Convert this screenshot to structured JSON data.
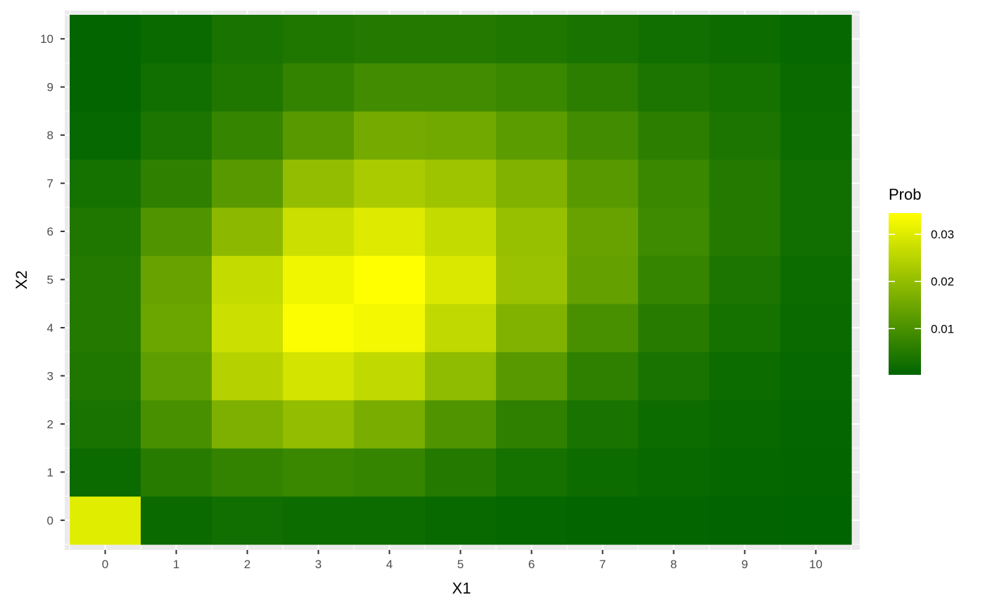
{
  "chart_data": {
    "type": "heatmap",
    "xlabel": "X1",
    "ylabel": "X2",
    "x": [
      0,
      1,
      2,
      3,
      4,
      5,
      6,
      7,
      8,
      9,
      10
    ],
    "y": [
      0,
      1,
      2,
      3,
      4,
      5,
      6,
      7,
      8,
      9,
      10
    ],
    "x_tick_labels": [
      "0",
      "1",
      "2",
      "3",
      "4",
      "5",
      "6",
      "7",
      "8",
      "9",
      "10"
    ],
    "y_tick_labels": [
      "0",
      "1",
      "2",
      "3",
      "4",
      "5",
      "6",
      "7",
      "8",
      "9",
      "10"
    ],
    "values": [
      [
        0.0305,
        0.0015,
        0.0025,
        0.002,
        0.002,
        0.0012,
        0.0008,
        0.0005,
        0.0005,
        0.0003,
        0.0002
      ],
      [
        0.0018,
        0.0055,
        0.007,
        0.008,
        0.0075,
        0.005,
        0.003,
        0.002,
        0.0012,
        0.0008,
        0.0005
      ],
      [
        0.0035,
        0.01,
        0.017,
        0.02,
        0.0165,
        0.011,
        0.0065,
        0.0035,
        0.002,
        0.0012,
        0.0006
      ],
      [
        0.0045,
        0.013,
        0.0245,
        0.0285,
        0.026,
        0.0195,
        0.012,
        0.0065,
        0.0035,
        0.002,
        0.001
      ],
      [
        0.005,
        0.0145,
        0.0275,
        0.034,
        0.033,
        0.026,
        0.0175,
        0.01,
        0.0055,
        0.003,
        0.0015
      ],
      [
        0.005,
        0.014,
        0.0265,
        0.0325,
        0.0345,
        0.0295,
        0.021,
        0.0135,
        0.0075,
        0.004,
        0.002
      ],
      [
        0.0045,
        0.011,
        0.019,
        0.0275,
        0.03,
        0.0265,
        0.0205,
        0.014,
        0.0085,
        0.005,
        0.0025
      ],
      [
        0.003,
        0.0065,
        0.012,
        0.02,
        0.023,
        0.0215,
        0.0175,
        0.012,
        0.008,
        0.005,
        0.0025
      ],
      [
        0.001,
        0.004,
        0.0075,
        0.012,
        0.016,
        0.0155,
        0.0125,
        0.009,
        0.006,
        0.004,
        0.002
      ],
      [
        0.0005,
        0.0025,
        0.0045,
        0.007,
        0.009,
        0.009,
        0.008,
        0.006,
        0.004,
        0.003,
        0.0015
      ],
      [
        0.0005,
        0.0015,
        0.0035,
        0.0045,
        0.005,
        0.005,
        0.0045,
        0.0035,
        0.0025,
        0.002,
        0.001
      ]
    ],
    "values_layout": "rows indexed by X2 (0 to 10), columns indexed by X1 (0 to 10)",
    "legend": {
      "title": "Prob",
      "placement": "right",
      "range": [
        0.0002,
        0.0345
      ],
      "breaks": [
        0.01,
        0.02,
        0.03
      ],
      "break_labels": [
        "0.01",
        "0.02",
        "0.03"
      ]
    },
    "colors": {
      "low": "#006400",
      "high": "#ffff00",
      "panel_background": "#ebebeb",
      "grid": "#ffffff"
    },
    "grid": true
  }
}
